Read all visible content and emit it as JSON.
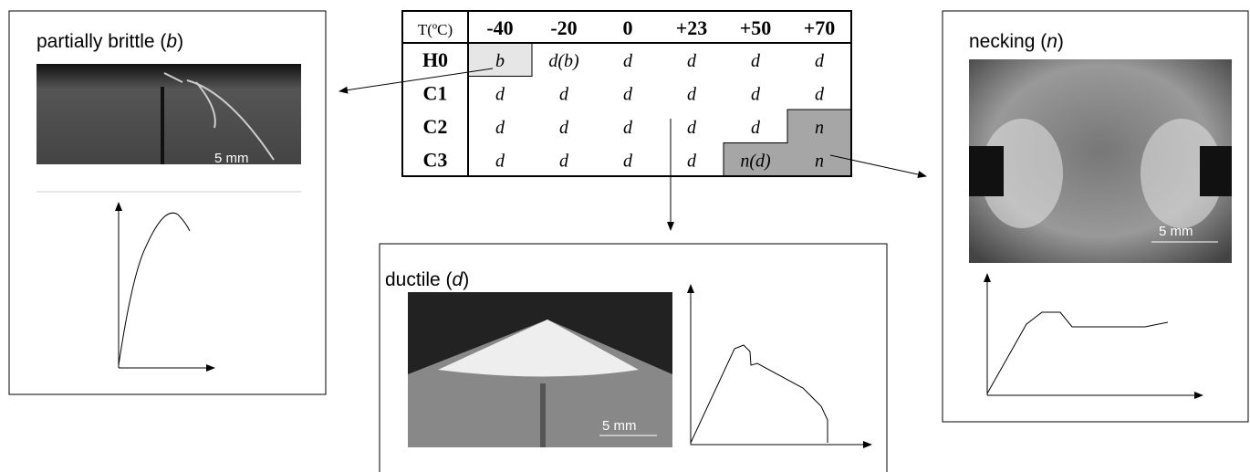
{
  "panels": {
    "brittle": {
      "title": [
        "partially brittle (",
        "b",
        ")"
      ],
      "scale": "5 mm"
    },
    "ductile": {
      "title": [
        "ductile (",
        "d",
        ")"
      ],
      "scale": "5 mm"
    },
    "necking": {
      "title": [
        "necking (",
        "n",
        ")"
      ],
      "scale": "5 mm"
    }
  },
  "table": {
    "header": [
      "T(ºC)",
      "-40",
      "-20",
      "0",
      "+23",
      "+50",
      "+70"
    ],
    "rows": [
      [
        "H0",
        "b",
        "d(b)",
        "d",
        "d",
        "d",
        "d"
      ],
      [
        "C1",
        "d",
        "d",
        "d",
        "d",
        "d",
        "d"
      ],
      [
        "C2",
        "d",
        "d",
        "d",
        "d",
        "d",
        "n"
      ],
      [
        "C3",
        "d",
        "d",
        "d",
        "d",
        "n(d)",
        "n"
      ]
    ]
  }
}
